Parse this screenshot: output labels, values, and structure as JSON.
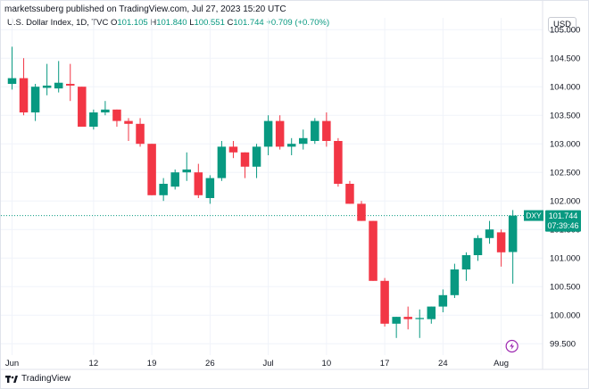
{
  "header": {
    "publisher": "marketssuberg published on TradingView.com, Jul 27, 2023 15:20 UTC",
    "symbol": "U.S. Dollar Index, 1D, TVC",
    "open_label": "O",
    "open": "101.105",
    "high_label": "H",
    "high": "101.840",
    "low_label": "L",
    "low": "100.551",
    "close_label": "C",
    "close": "101.744",
    "change": "+0.709 (+0.70%)"
  },
  "currency_button": "USD",
  "price_badge": {
    "symbol": "DXY",
    "price": "101.744",
    "countdown": "07:39:46"
  },
  "footer": {
    "brand": "TradingView"
  },
  "colors": {
    "up": "#089981",
    "down": "#f23645",
    "grid": "#f0f3fa",
    "axis_text": "#131722",
    "event": "#9c27b0"
  },
  "chart_data": {
    "type": "candlestick",
    "y_ticks": [
      "99.500",
      "100.000",
      "100.500",
      "101.000",
      "101.500",
      "102.000",
      "102.500",
      "103.000",
      "103.500",
      "104.000",
      "104.500",
      "105.000"
    ],
    "ylim": [
      99.3,
      105.05
    ],
    "x_tick_labels": [
      {
        "label": "Jun",
        "i": 0
      },
      {
        "label": "12",
        "i": 7
      },
      {
        "label": "19",
        "i": 12
      },
      {
        "label": "26",
        "i": 17
      },
      {
        "label": "Jul",
        "i": 22
      },
      {
        "label": "10",
        "i": 27
      },
      {
        "label": "17",
        "i": 32
      },
      {
        "label": "24",
        "i": 37
      },
      {
        "label": "Aug",
        "i": 42
      }
    ],
    "candles": [
      {
        "o": 104.05,
        "h": 104.7,
        "l": 103.95,
        "c": 104.15
      },
      {
        "o": 104.15,
        "h": 104.5,
        "l": 103.5,
        "c": 103.55
      },
      {
        "o": 103.55,
        "h": 104.05,
        "l": 103.4,
        "c": 104.0
      },
      {
        "o": 103.98,
        "h": 104.4,
        "l": 103.85,
        "c": 104.02
      },
      {
        "o": 103.97,
        "h": 104.45,
        "l": 103.9,
        "c": 104.07
      },
      {
        "o": 104.05,
        "h": 104.4,
        "l": 103.75,
        "c": 104.02
      },
      {
        "o": 104.0,
        "h": 104.0,
        "l": 103.3,
        "c": 103.3
      },
      {
        "o": 103.3,
        "h": 103.6,
        "l": 103.25,
        "c": 103.55
      },
      {
        "o": 103.55,
        "h": 103.75,
        "l": 103.5,
        "c": 103.6
      },
      {
        "o": 103.6,
        "h": 103.6,
        "l": 103.3,
        "c": 103.4
      },
      {
        "o": 103.4,
        "h": 103.45,
        "l": 103.05,
        "c": 103.35
      },
      {
        "o": 103.35,
        "h": 103.45,
        "l": 102.95,
        "c": 103.0
      },
      {
        "o": 103.0,
        "h": 103.0,
        "l": 102.1,
        "c": 102.1
      },
      {
        "o": 102.1,
        "h": 102.4,
        "l": 102.0,
        "c": 102.3
      },
      {
        "o": 102.25,
        "h": 102.55,
        "l": 102.2,
        "c": 102.5
      },
      {
        "o": 102.5,
        "h": 102.85,
        "l": 102.35,
        "c": 102.55
      },
      {
        "o": 102.5,
        "h": 102.65,
        "l": 102.05,
        "c": 102.1
      },
      {
        "o": 102.05,
        "h": 102.45,
        "l": 101.95,
        "c": 102.4
      },
      {
        "o": 102.4,
        "h": 103.05,
        "l": 102.35,
        "c": 102.95
      },
      {
        "o": 102.95,
        "h": 103.05,
        "l": 102.75,
        "c": 102.85
      },
      {
        "o": 102.85,
        "h": 102.85,
        "l": 102.4,
        "c": 102.6
      },
      {
        "o": 102.6,
        "h": 103.0,
        "l": 102.4,
        "c": 102.95
      },
      {
        "o": 102.95,
        "h": 103.5,
        "l": 102.8,
        "c": 103.4
      },
      {
        "o": 103.4,
        "h": 103.5,
        "l": 102.9,
        "c": 102.95
      },
      {
        "o": 102.95,
        "h": 103.1,
        "l": 102.8,
        "c": 103.0
      },
      {
        "o": 103.0,
        "h": 103.25,
        "l": 102.9,
        "c": 103.1
      },
      {
        "o": 103.05,
        "h": 103.45,
        "l": 103.0,
        "c": 103.4
      },
      {
        "o": 103.4,
        "h": 103.55,
        "l": 102.95,
        "c": 103.05
      },
      {
        "o": 103.05,
        "h": 103.1,
        "l": 102.25,
        "c": 102.3
      },
      {
        "o": 102.3,
        "h": 102.35,
        "l": 101.95,
        "c": 101.95
      },
      {
        "o": 101.95,
        "h": 102.0,
        "l": 101.65,
        "c": 101.65
      },
      {
        "o": 101.65,
        "h": 101.65,
        "l": 100.6,
        "c": 100.6
      },
      {
        "o": 100.6,
        "h": 100.65,
        "l": 99.8,
        "c": 99.85
      },
      {
        "o": 99.85,
        "h": 99.97,
        "l": 99.6,
        "c": 99.97
      },
      {
        "o": 99.97,
        "h": 100.15,
        "l": 99.75,
        "c": 99.93
      },
      {
        "o": 99.93,
        "h": 100.1,
        "l": 99.6,
        "c": 99.95
      },
      {
        "o": 99.93,
        "h": 100.15,
        "l": 99.85,
        "c": 100.15
      },
      {
        "o": 100.15,
        "h": 100.45,
        "l": 100.05,
        "c": 100.35
      },
      {
        "o": 100.35,
        "h": 100.9,
        "l": 100.3,
        "c": 100.8
      },
      {
        "o": 100.8,
        "h": 101.1,
        "l": 100.6,
        "c": 101.05
      },
      {
        "o": 101.05,
        "h": 101.4,
        "l": 100.95,
        "c": 101.35
      },
      {
        "o": 101.35,
        "h": 101.65,
        "l": 101.25,
        "c": 101.5
      },
      {
        "o": 101.45,
        "h": 101.5,
        "l": 100.85,
        "c": 101.1
      },
      {
        "o": 101.105,
        "h": 101.84,
        "l": 100.551,
        "c": 101.744
      }
    ],
    "current_price": 101.744,
    "grid": true
  }
}
